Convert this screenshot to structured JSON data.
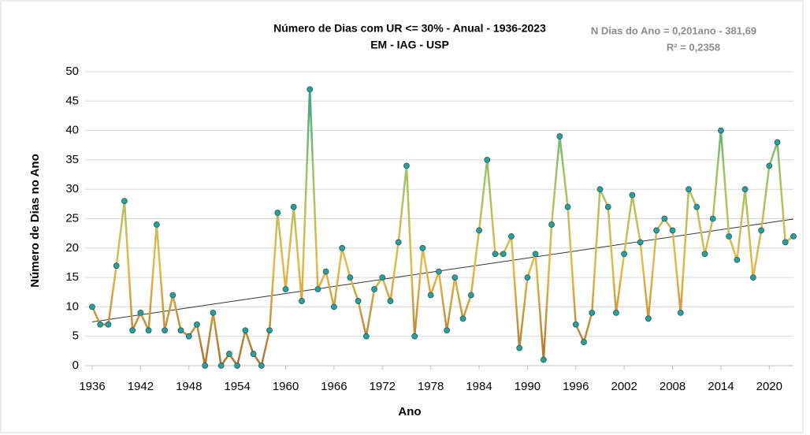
{
  "chart_data": {
    "type": "line",
    "title": "Número de Dias com UR <= 30% - Anual - 1936-2023",
    "subtitle": "EM - IAG - USP",
    "x_label": "Ano",
    "y_label": "Número de Dias no Ano",
    "x": [
      1936,
      1937,
      1938,
      1939,
      1940,
      1941,
      1942,
      1943,
      1944,
      1945,
      1946,
      1947,
      1948,
      1949,
      1950,
      1951,
      1952,
      1953,
      1954,
      1955,
      1956,
      1957,
      1958,
      1959,
      1960,
      1961,
      1962,
      1963,
      1964,
      1965,
      1966,
      1967,
      1968,
      1969,
      1970,
      1971,
      1972,
      1973,
      1974,
      1975,
      1976,
      1977,
      1978,
      1979,
      1980,
      1981,
      1982,
      1983,
      1984,
      1985,
      1986,
      1987,
      1988,
      1989,
      1990,
      1991,
      1992,
      1993,
      1994,
      1995,
      1996,
      1997,
      1998,
      1999,
      2000,
      2001,
      2002,
      2003,
      2004,
      2005,
      2006,
      2007,
      2008,
      2009,
      2010,
      2011,
      2012,
      2013,
      2014,
      2015,
      2016,
      2017,
      2018,
      2019,
      2020,
      2021,
      2022,
      2023
    ],
    "values": [
      10,
      7,
      7,
      17,
      28,
      6,
      9,
      6,
      24,
      6,
      12,
      6,
      5,
      7,
      0,
      9,
      0,
      2,
      0,
      6,
      2,
      0,
      6,
      26,
      13,
      27,
      11,
      47,
      13,
      16,
      10,
      20,
      15,
      11,
      5,
      13,
      15,
      11,
      21,
      34,
      5,
      20,
      12,
      16,
      6,
      15,
      8,
      12,
      23,
      35,
      19,
      19,
      22,
      3,
      15,
      19,
      1,
      24,
      39,
      27,
      7,
      4,
      9,
      30,
      27,
      9,
      19,
      29,
      21,
      8,
      23,
      25,
      23,
      9,
      30,
      27,
      19,
      25,
      40,
      22,
      18,
      30,
      15,
      23,
      34,
      38,
      21,
      22
    ],
    "marker_color": "#2e9e9a",
    "line_gradient": [
      "#a8742e",
      "#e6b84a",
      "#9cc464",
      "#1e9a8e"
    ],
    "trendline": {
      "slope": 0.201,
      "intercept": -381.69,
      "color": "#333333",
      "label": "N Dias do Ano = 0,201ano - 381,69",
      "r2_label": "R² = 0,2358"
    },
    "xlim": [
      1936,
      2023
    ],
    "xticks": [
      1936,
      1942,
      1948,
      1954,
      1960,
      1966,
      1972,
      1978,
      1984,
      1990,
      1996,
      2002,
      2008,
      2014,
      2020
    ],
    "ylim": [
      0,
      50
    ],
    "yticks": [
      0,
      5,
      10,
      15,
      20,
      25,
      30,
      35,
      40,
      45,
      50
    ],
    "grid": true
  }
}
